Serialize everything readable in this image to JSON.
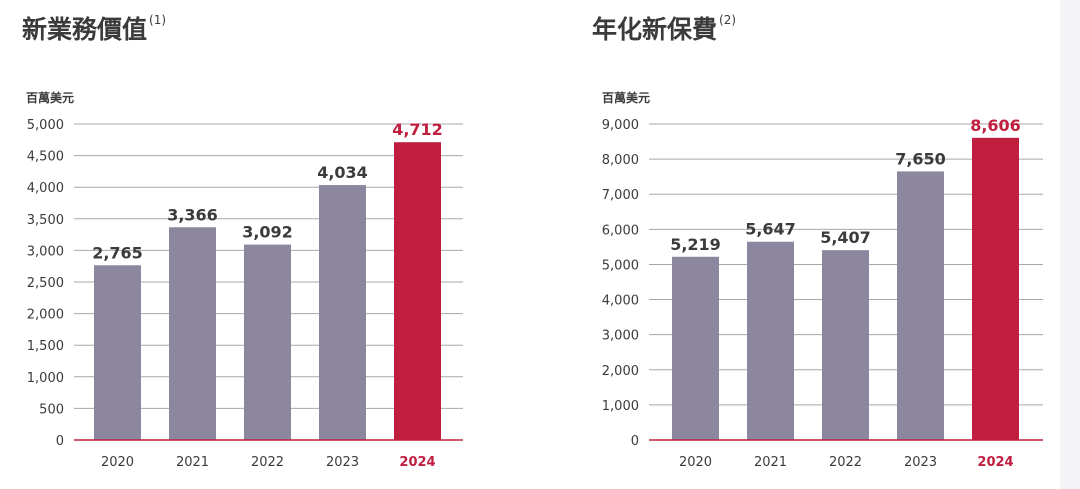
{
  "colors": {
    "bar": "#8c879f",
    "highlight": "#c01e3f",
    "grid": "#a8a8a8",
    "baseline": "#c01e3f",
    "text": "#3b3b3b"
  },
  "charts": [
    {
      "title": "新業務價值",
      "title_note": "(1)",
      "unit": "百萬美元"
    },
    {
      "title": "年化新保費",
      "title_note": "(2)",
      "unit": "百萬美元"
    }
  ],
  "chart_data": [
    {
      "type": "bar",
      "title": "新業務價值",
      "ylabel": "百萬美元",
      "categories": [
        "2020",
        "2021",
        "2022",
        "2023",
        "2024"
      ],
      "values": [
        2765,
        3366,
        3092,
        4034,
        4712
      ],
      "value_labels": [
        "2,765",
        "3,366",
        "3,092",
        "4,034",
        "4,712"
      ],
      "highlight_index": 4,
      "ylim": [
        0,
        5000
      ],
      "yticks": [
        0,
        500,
        1000,
        1500,
        2000,
        2500,
        3000,
        3500,
        4000,
        4500,
        5000
      ],
      "ytick_labels": [
        "0",
        "500",
        "1,000",
        "1,500",
        "2,000",
        "2,500",
        "3,000",
        "3,500",
        "4,000",
        "4,500",
        "5,000"
      ],
      "grid": true
    },
    {
      "type": "bar",
      "title": "年化新保費",
      "ylabel": "百萬美元",
      "categories": [
        "2020",
        "2021",
        "2022",
        "2023",
        "2024"
      ],
      "values": [
        5219,
        5647,
        5407,
        7650,
        8606
      ],
      "value_labels": [
        "5,219",
        "5,647",
        "5,407",
        "7,650",
        "8,606"
      ],
      "highlight_index": 4,
      "ylim": [
        0,
        9000
      ],
      "yticks": [
        0,
        1000,
        2000,
        3000,
        4000,
        5000,
        6000,
        7000,
        8000,
        9000
      ],
      "ytick_labels": [
        "0",
        "1,000",
        "2,000",
        "3,000",
        "4,000",
        "5,000",
        "6,000",
        "7,000",
        "8,000",
        "9,000"
      ],
      "grid": true
    }
  ]
}
